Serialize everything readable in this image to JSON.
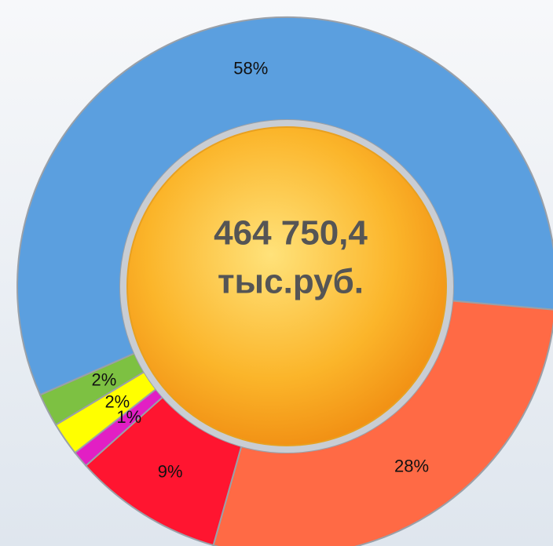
{
  "chart_data": {
    "type": "donut",
    "center_text": [
      "464 750,4",
      "тыс.руб."
    ],
    "values": [
      58,
      28,
      9,
      1,
      2,
      2
    ],
    "value_labels": [
      "58%",
      "28%",
      "9%",
      "1%",
      "2%",
      "2%"
    ],
    "colors": [
      "#5b9fdf",
      "#ff6a45",
      "#ff1530",
      "#e21fc4",
      "#ffff00",
      "#7dc142"
    ]
  }
}
